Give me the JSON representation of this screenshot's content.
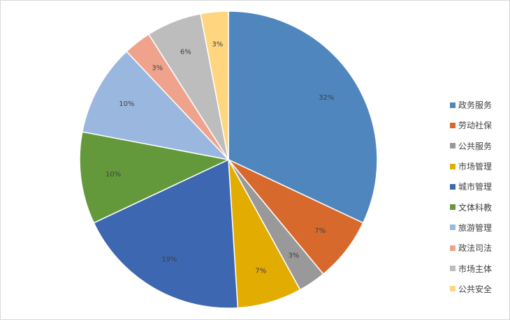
{
  "chart_data": {
    "type": "pie",
    "title": "",
    "legend_position": "right",
    "slices": [
      {
        "name": "政务服务",
        "value": 32,
        "label": "32%",
        "color": "#4f86be"
      },
      {
        "name": "劳动社保",
        "value": 7,
        "label": "7%",
        "color": "#d8692c"
      },
      {
        "name": "公共服务",
        "value": 3,
        "label": "3%",
        "color": "#999999"
      },
      {
        "name": "市场管理",
        "value": 7,
        "label": "7%",
        "color": "#e3ac00"
      },
      {
        "name": "城市管理",
        "value": 19,
        "label": "19%",
        "color": "#3d67b0"
      },
      {
        "name": "文体科教",
        "value": 10,
        "label": "10%",
        "color": "#63993b"
      },
      {
        "name": "旅游管理",
        "value": 10,
        "label": "10%",
        "color": "#9ab8df"
      },
      {
        "name": "政法司法",
        "value": 3,
        "label": "3%",
        "color": "#efa38c"
      },
      {
        "name": "市场主体",
        "value": 6,
        "label": "6%",
        "color": "#bdbdbd"
      },
      {
        "name": "公共安全",
        "value": 3,
        "label": "3%",
        "color": "#ffd580"
      }
    ]
  }
}
